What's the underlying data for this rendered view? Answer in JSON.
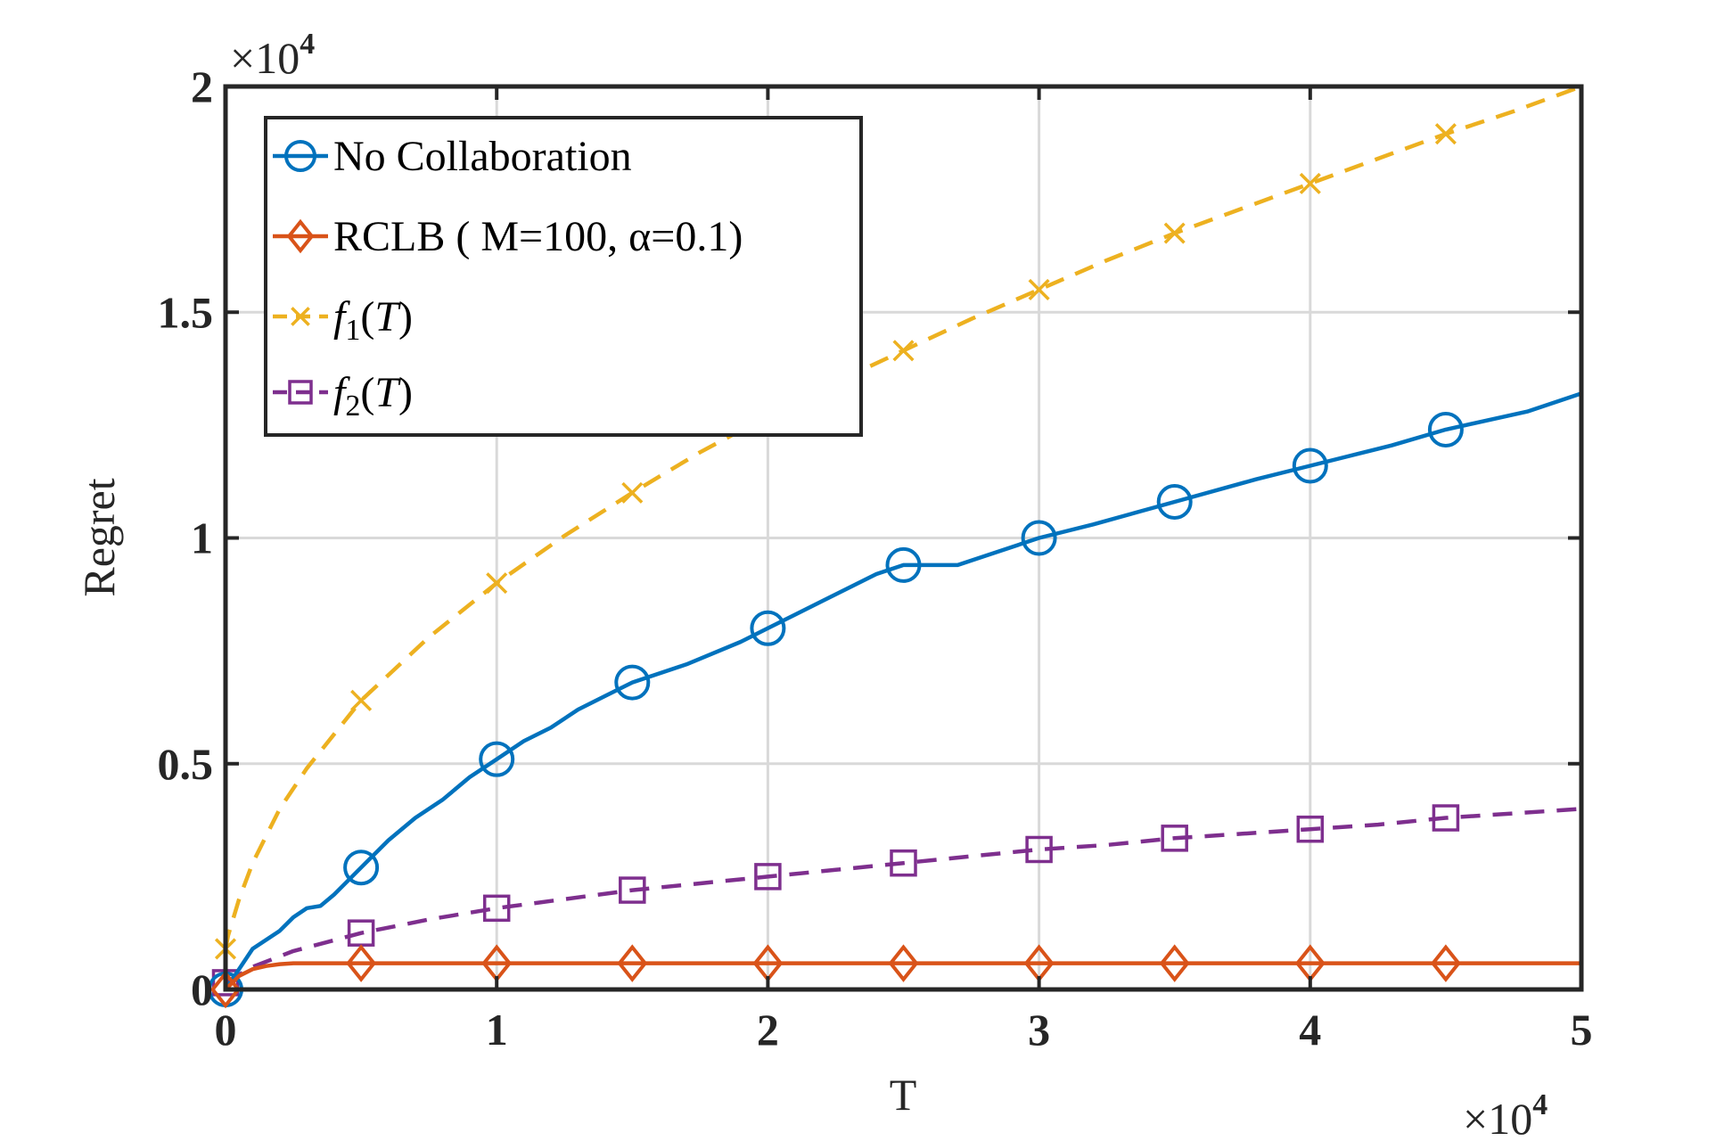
{
  "chart_data": {
    "type": "line",
    "xlabel": "T",
    "ylabel": "Regret",
    "x_multiplier": "×10",
    "x_multiplier_exp": "4",
    "y_multiplier": "×10",
    "y_multiplier_exp": "4",
    "xlim": [
      0,
      50000
    ],
    "ylim": [
      0,
      20000
    ],
    "x_ticks": [
      0,
      10000,
      20000,
      30000,
      40000,
      50000
    ],
    "x_tick_labels": [
      "0",
      "1",
      "2",
      "3",
      "4",
      "5"
    ],
    "y_ticks": [
      0,
      5000,
      10000,
      15000,
      20000
    ],
    "y_tick_labels": [
      "0",
      "0.5",
      "1",
      "1.5",
      "2"
    ],
    "grid": true,
    "legend_position": "top-left",
    "series": [
      {
        "name": "No Collaboration",
        "color": "#0072BD",
        "line_style": "solid",
        "marker": "circle",
        "x": [
          0,
          1000,
          2000,
          2500,
          3000,
          3500,
          4000,
          5000,
          6000,
          7000,
          8000,
          9000,
          10000,
          11000,
          12000,
          13000,
          14000,
          15000,
          17000,
          19000,
          20000,
          22000,
          24000,
          25000,
          26000,
          27000,
          28000,
          30000,
          32000,
          35000,
          38000,
          40000,
          43000,
          45000,
          48000,
          50000
        ],
        "y": [
          0,
          900,
          1300,
          1600,
          1800,
          1850,
          2100,
          2700,
          3300,
          3800,
          4200,
          4700,
          5100,
          5500,
          5800,
          6200,
          6500,
          6800,
          7200,
          7700,
          8000,
          8600,
          9200,
          9400,
          9400,
          9400,
          9600,
          10000,
          10300,
          10800,
          11300,
          11600,
          12050,
          12400,
          12800,
          13200
        ],
        "marker_x": [
          0,
          5000,
          10000,
          15000,
          20000,
          25000,
          30000,
          35000,
          40000,
          45000
        ],
        "marker_y": [
          0,
          2700,
          5100,
          6800,
          8000,
          9400,
          10000,
          10800,
          11600,
          12400
        ]
      },
      {
        "name": "RCLB ( M=100, α=0.1)",
        "color": "#D95319",
        "line_style": "solid",
        "marker": "diamond",
        "x": [
          0,
          500,
          1000,
          1500,
          2000,
          2500,
          50000
        ],
        "y": [
          0,
          300,
          450,
          520,
          560,
          580,
          580
        ],
        "marker_x": [
          0,
          5000,
          10000,
          15000,
          20000,
          25000,
          30000,
          35000,
          40000,
          45000
        ],
        "marker_y": [
          0,
          580,
          580,
          580,
          580,
          580,
          580,
          580,
          580,
          580
        ]
      },
      {
        "name": "f1(T)",
        "color": "#EDB120",
        "line_style": "dashed",
        "marker": "x",
        "x": [
          0,
          100,
          500,
          1000,
          2000,
          3000,
          5000,
          7500,
          10000,
          12500,
          15000,
          17500,
          20000,
          22500,
          25000,
          27500,
          30000,
          32500,
          35000,
          37500,
          40000,
          42500,
          45000,
          47500,
          50000
        ],
        "y": [
          900,
          1200,
          2000,
          2800,
          4000,
          4900,
          6400,
          7800,
          9000,
          10050,
          11000,
          11900,
          12700,
          13450,
          14150,
          14850,
          15500,
          16150,
          16750,
          17300,
          17850,
          18400,
          18950,
          19450,
          20000
        ],
        "marker_x": [
          0,
          5000,
          10000,
          15000,
          25000,
          30000,
          35000,
          40000,
          45000
        ],
        "marker_y": [
          900,
          6400,
          9000,
          11000,
          14150,
          15500,
          16750,
          17850,
          18950
        ]
      },
      {
        "name": "f2(T)",
        "color": "#7E2F8E",
        "line_style": "dashed",
        "marker": "square",
        "x": [
          0,
          1000,
          2500,
          5000,
          7500,
          10000,
          12500,
          15000,
          17500,
          20000,
          22500,
          25000,
          27500,
          30000,
          32500,
          35000,
          37500,
          40000,
          42500,
          45000,
          47500,
          50000
        ],
        "y": [
          150,
          500,
          850,
          1250,
          1550,
          1800,
          2000,
          2200,
          2350,
          2500,
          2650,
          2800,
          2950,
          3100,
          3200,
          3350,
          3450,
          3550,
          3650,
          3800,
          3900,
          4000
        ],
        "marker_x": [
          0,
          5000,
          10000,
          15000,
          20000,
          25000,
          30000,
          35000,
          40000,
          45000
        ],
        "marker_y": [
          150,
          1250,
          1800,
          2200,
          2500,
          2800,
          3100,
          3350,
          3550,
          3800
        ]
      }
    ]
  }
}
